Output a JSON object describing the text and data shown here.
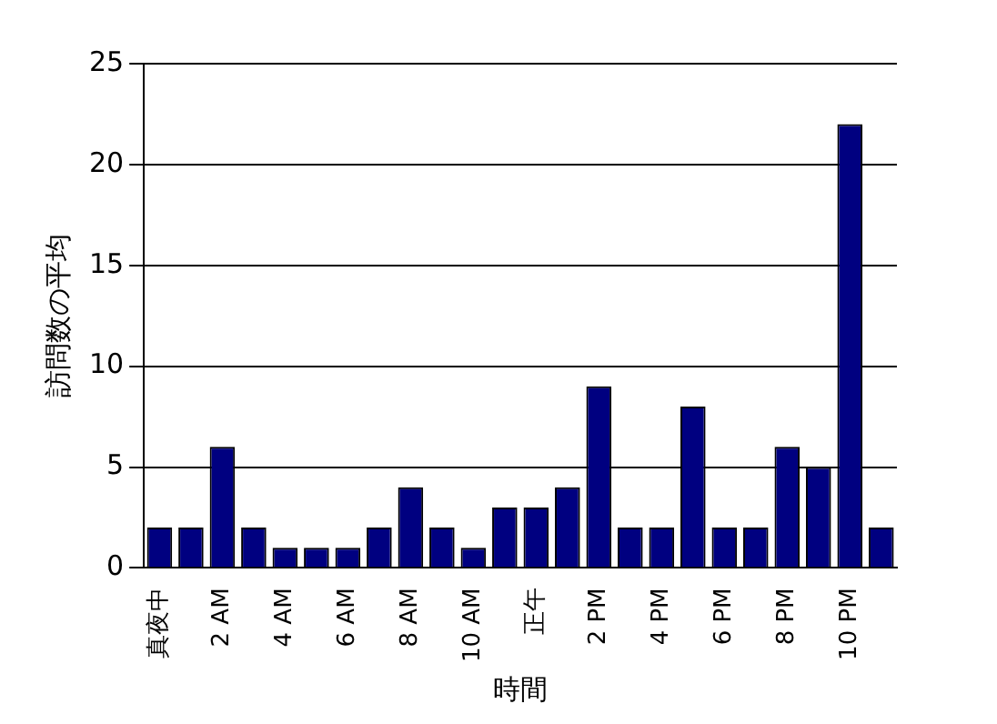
{
  "chart_data": {
    "type": "bar",
    "xlabel": "時間",
    "ylabel": "訪問数の平均",
    "categories": [
      "真夜中",
      null,
      "2 AM",
      null,
      "4 AM",
      null,
      "6 AM",
      null,
      "8 AM",
      null,
      "10 AM",
      null,
      "正午",
      null,
      "2 PM",
      null,
      "4 PM",
      null,
      "6 PM",
      null,
      "8 PM",
      null,
      "10 PM",
      null
    ],
    "values": [
      2,
      2,
      6,
      2,
      1,
      1,
      1,
      2,
      4,
      2,
      1,
      3,
      3,
      4,
      9,
      2,
      2,
      8,
      2,
      2,
      6,
      5,
      22,
      2
    ],
    "color": "#000080",
    "ylim": [
      0,
      25
    ],
    "yticks": [
      0,
      5,
      10,
      15,
      20,
      25
    ],
    "grid": "y",
    "legend": false
  }
}
